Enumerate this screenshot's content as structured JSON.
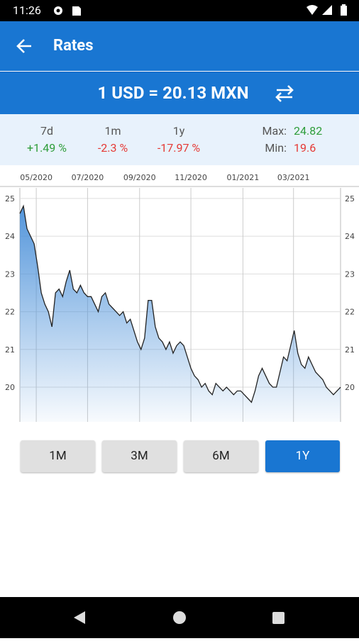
{
  "status_bar": {
    "time": "11:26"
  },
  "app_bar": {
    "title": "Rates"
  },
  "rate": "1 USD = 20.13 MXN",
  "stats": [
    {
      "label": "7d",
      "value": "+1.49 %",
      "color": "#2e9d3a"
    },
    {
      "label": "1m",
      "value": "-2.3 %",
      "color": "#e53935"
    },
    {
      "label": "1y",
      "value": "-17.97 %",
      "color": "#e53935"
    }
  ],
  "extremes": [
    {
      "label": "Max:",
      "value": "24.82",
      "color": "#2e9d3a"
    },
    {
      "label": "Min:",
      "value": "19.6",
      "color": "#e53935"
    }
  ],
  "chart_data": {
    "type": "area",
    "values": [
      24.6,
      24.8,
      24.2,
      24.0,
      23.8,
      23.2,
      22.5,
      22.2,
      22.0,
      21.6,
      22.5,
      22.6,
      22.4,
      22.8,
      23.1,
      22.6,
      22.5,
      22.7,
      22.5,
      22.4,
      22.4,
      22.2,
      22.0,
      22.4,
      22.5,
      22.2,
      22.1,
      22.0,
      21.9,
      22.0,
      21.7,
      21.8,
      21.5,
      21.2,
      21.0,
      21.3,
      22.3,
      22.3,
      21.6,
      21.3,
      21.2,
      21.0,
      21.2,
      20.9,
      21.1,
      21.2,
      21.1,
      20.8,
      20.5,
      20.3,
      20.2,
      20.0,
      20.1,
      19.9,
      19.8,
      20.1,
      20.0,
      19.9,
      20.0,
      19.9,
      19.8,
      19.9,
      19.9,
      19.8,
      19.7,
      19.6,
      19.9,
      20.3,
      20.5,
      20.3,
      20.1,
      20.0,
      20.0,
      20.4,
      20.8,
      20.7,
      21.1,
      21.5,
      20.9,
      20.6,
      20.5,
      20.8,
      20.6,
      20.4,
      20.3,
      20.2,
      20.0,
      19.9,
      19.8,
      19.9,
      20.0
    ],
    "xlim": [
      0,
      90
    ],
    "xticks": [
      {
        "value": 4.6,
        "label": "05/2020"
      },
      {
        "value": 19,
        "label": "07/2020"
      },
      {
        "value": 33.6,
        "label": "09/2020"
      },
      {
        "value": 48,
        "label": "11/2020"
      },
      {
        "value": 62.6,
        "label": "01/2021"
      },
      {
        "value": 76.8,
        "label": "03/2021"
      }
    ],
    "ylim": [
      19.08,
      25.28
    ],
    "yticks": [
      20,
      21,
      22,
      23,
      24,
      25
    ],
    "grid": true,
    "color": "#222222",
    "fill": "#4a90d9"
  },
  "range_buttons": {
    "options": [
      "1M",
      "3M",
      "6M",
      "1Y"
    ],
    "selected": 3
  }
}
